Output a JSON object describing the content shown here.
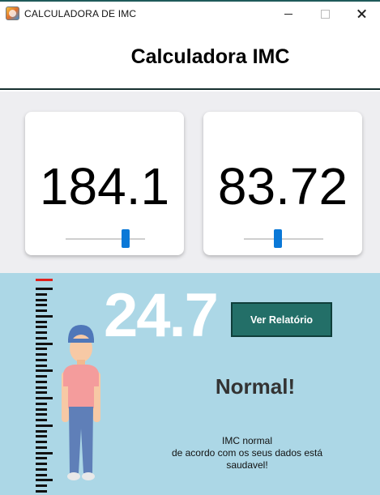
{
  "window": {
    "title": "CALCULADORA DE IMC"
  },
  "header": {
    "title": "Calculadora IMC"
  },
  "inputs": {
    "height": {
      "value": "184.1",
      "slider_fraction": 0.78
    },
    "weight": {
      "value": "83.72",
      "slider_fraction": 0.42
    }
  },
  "result": {
    "imc": "24.7",
    "report_button": "Ver Relatório",
    "status": "Normal!",
    "message": [
      "IMC normal",
      "de acordo com os seus dados está",
      "saudavel!"
    ]
  },
  "colors": {
    "accent": "#0a78d7",
    "result_bg": "#acd7e6",
    "button_bg": "#236f68",
    "ruler_top": "#e0201c"
  }
}
